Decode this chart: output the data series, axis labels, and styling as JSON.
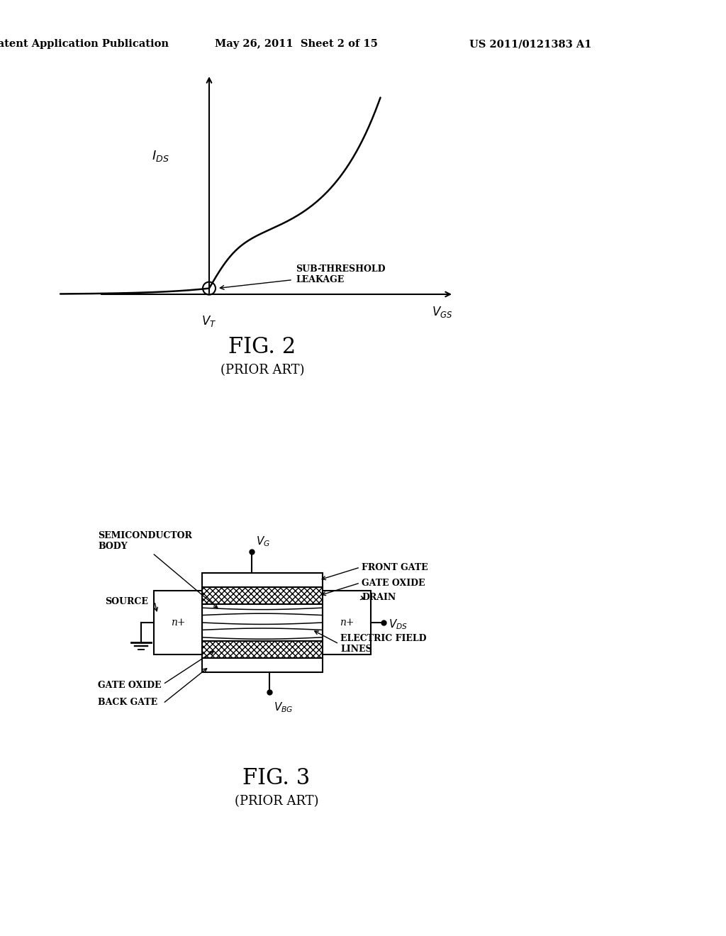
{
  "bg_color": "#ffffff",
  "header_left": "Patent Application Publication",
  "header_mid": "May 26, 2011  Sheet 2 of 15",
  "header_right": "US 2011/0121383 A1",
  "fig2_title": "FIG. 2",
  "fig2_subtitle": "(PRIOR ART)",
  "fig3_title": "FIG. 3",
  "fig3_subtitle": "(PRIOR ART)"
}
